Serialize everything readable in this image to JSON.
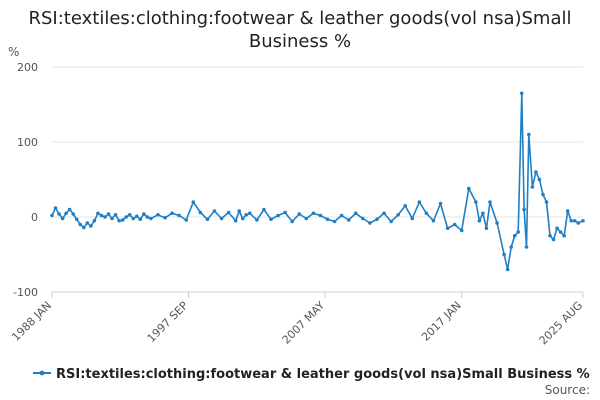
{
  "chart_data": {
    "type": "line",
    "title": "RSI:textiles:clothing:footwear & leather goods(vol nsa)Small Business %",
    "title_lines": [
      "RSI:textiles:clothing:footwear & leather goods(vol nsa)Small",
      "Business %"
    ],
    "ylabel": "%",
    "ylim": [
      -100,
      200
    ],
    "yticks": [
      -100,
      0,
      100,
      200
    ],
    "x_range": [
      "1988 JAN",
      "2025 AUG"
    ],
    "xticks": [
      "1988 JAN",
      "1997 SEP",
      "2007 MAY",
      "2017 JAN",
      "2025 AUG"
    ],
    "grid": true,
    "legend_position": "bottom",
    "series": [
      {
        "name": "RSI:textiles:clothing:footwear & leather goods(vol nsa)Small Business %",
        "color": "#1f7fc4",
        "x": [
          "1988 JAN",
          "1988 APR",
          "1988 JUL",
          "1988 OCT",
          "1989 JAN",
          "1989 APR",
          "1989 JUL",
          "1989 OCT",
          "1990 JAN",
          "1990 APR",
          "1990 JUL",
          "1990 OCT",
          "1991 JAN",
          "1991 APR",
          "1991 JUL",
          "1991 OCT",
          "1992 JAN",
          "1992 APR",
          "1992 JUL",
          "1992 OCT",
          "1993 JAN",
          "1993 APR",
          "1993 JUL",
          "1993 OCT",
          "1994 JAN",
          "1994 APR",
          "1994 JUL",
          "1994 OCT",
          "1995 JAN",
          "1995 JUL",
          "1996 JAN",
          "1996 JUL",
          "1997 JAN",
          "1997 JUL",
          "1998 JAN",
          "1998 JUL",
          "1999 JAN",
          "1999 JUL",
          "2000 JAN",
          "2000 JUL",
          "2001 JAN",
          "2001 APR",
          "2001 JUL",
          "2001 OCT",
          "2002 JAN",
          "2002 JUL",
          "2003 JAN",
          "2003 JUL",
          "2004 JAN",
          "2004 JUL",
          "2005 JAN",
          "2005 JUL",
          "2006 JAN",
          "2006 JUL",
          "2007 JAN",
          "2007 JUL",
          "2008 JAN",
          "2008 JUL",
          "2009 JAN",
          "2009 JUL",
          "2010 JAN",
          "2010 JUL",
          "2011 JAN",
          "2011 JUL",
          "2012 JAN",
          "2012 JUL",
          "2013 JAN",
          "2013 JUL",
          "2014 JAN",
          "2014 JUL",
          "2015 JAN",
          "2015 JUL",
          "2016 JAN",
          "2016 JUL",
          "2017 JAN",
          "2017 JUL",
          "2018 JAN",
          "2018 APR",
          "2018 JUL",
          "2018 OCT",
          "2019 JAN",
          "2019 JUL",
          "2020 JAN",
          "2020 APR",
          "2020 JUL",
          "2020 OCT",
          "2021 JAN",
          "2021 APR",
          "2021 JUN",
          "2021 AUG",
          "2021 OCT",
          "2022 JAN",
          "2022 APR",
          "2022 JUL",
          "2022 OCT",
          "2023 JAN",
          "2023 APR",
          "2023 JUL",
          "2023 OCT",
          "2024 JAN",
          "2024 APR",
          "2024 JUL",
          "2024 OCT",
          "2025 JAN",
          "2025 APR",
          "2025 AUG"
        ],
        "values": [
          2,
          12,
          4,
          -2,
          5,
          10,
          4,
          -3,
          -10,
          -14,
          -8,
          -12,
          -5,
          5,
          2,
          0,
          4,
          -2,
          3,
          -5,
          -4,
          0,
          3,
          -2,
          1,
          -3,
          4,
          0,
          -2,
          3,
          -1,
          5,
          2,
          -4,
          20,
          6,
          -3,
          8,
          -2,
          6,
          -5,
          8,
          -2,
          3,
          5,
          -4,
          10,
          -3,
          2,
          6,
          -6,
          4,
          -2,
          5,
          2,
          -3,
          -6,
          2,
          -4,
          5,
          -2,
          -8,
          -3,
          5,
          -6,
          3,
          15,
          -2,
          20,
          5,
          -5,
          18,
          -15,
          -10,
          -18,
          38,
          20,
          -5,
          5,
          -15,
          20,
          -8,
          -50,
          -70,
          -40,
          -25,
          -20,
          165,
          10,
          -40,
          110,
          40,
          60,
          50,
          30,
          20,
          -25,
          -30,
          -15,
          -20,
          -25,
          8,
          -5,
          -5,
          -8,
          -5
        ]
      }
    ],
    "source_label": "Source:"
  }
}
